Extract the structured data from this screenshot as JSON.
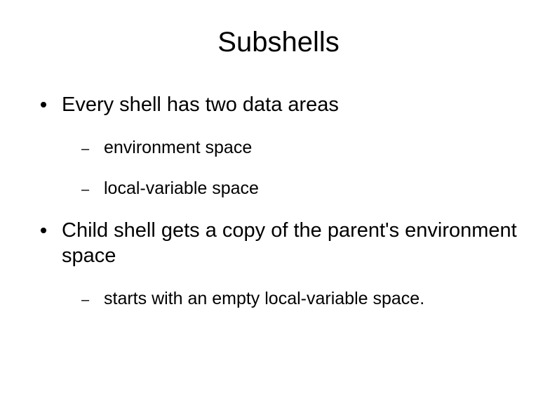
{
  "title": "Subshells",
  "title_fontsize": 40,
  "body_fontsize_l1": 29,
  "body_fontsize_l2": 25,
  "text_color": "#000000",
  "background_color": "#ffffff",
  "l1_marker_color": "#000000",
  "l2_marker_glyph": "–",
  "bullets": [
    {
      "text": "Every shell has two data areas",
      "children": [
        {
          "text": "environment space"
        },
        {
          "text": "local-variable space"
        }
      ]
    },
    {
      "text": "Child shell gets a copy of the parent's environment space",
      "children": [
        {
          "text": "starts with an empty local-variable space."
        }
      ]
    }
  ]
}
